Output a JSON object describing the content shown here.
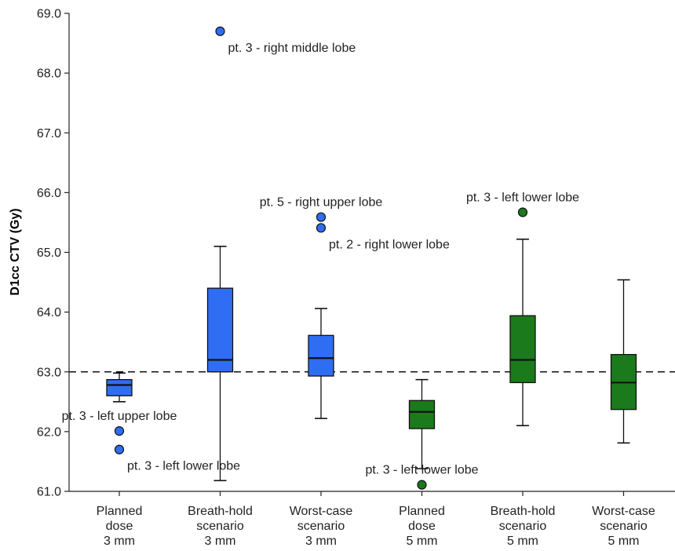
{
  "chart_data": {
    "type": "box",
    "title": "",
    "xlabel": "",
    "ylabel": "D1cc CTV (Gy)",
    "ylim": [
      61.0,
      69.0
    ],
    "yticks": [
      "61.0",
      "62.0",
      "63.0",
      "64.0",
      "65.0",
      "66.0",
      "67.0",
      "68.0",
      "69.0"
    ],
    "reference_line": {
      "y": 63.0,
      "style": "dashed"
    },
    "grid": false,
    "colors": {
      "3 mm": "#2f6ef2",
      "5 mm": "#1b7a1b"
    },
    "categories": [
      {
        "lines": [
          "Planned",
          "dose",
          "3 mm"
        ],
        "group": "3 mm",
        "min": 62.5,
        "q1": 62.6,
        "median": 62.78,
        "q3": 62.87,
        "max": 62.98
      },
      {
        "lines": [
          "Breath-hold",
          "scenario",
          "3 mm"
        ],
        "group": "3 mm",
        "min": 61.18,
        "q1": 63.0,
        "median": 63.2,
        "q3": 64.4,
        "max": 65.1
      },
      {
        "lines": [
          "Worst-case",
          "scenario",
          "3 mm"
        ],
        "group": "3 mm",
        "min": 62.22,
        "q1": 62.93,
        "median": 63.23,
        "q3": 63.61,
        "max": 64.06
      },
      {
        "lines": [
          "Planned",
          "dose",
          "5 mm"
        ],
        "group": "5 mm",
        "min": 61.38,
        "q1": 62.05,
        "median": 62.33,
        "q3": 62.52,
        "max": 62.87
      },
      {
        "lines": [
          "Breath-hold",
          "scenario",
          "5 mm"
        ],
        "group": "5 mm",
        "min": 62.1,
        "q1": 62.82,
        "median": 63.2,
        "q3": 63.94,
        "max": 65.22
      },
      {
        "lines": [
          "Worst-case",
          "scenario",
          "5 mm"
        ],
        "group": "5 mm",
        "min": 61.81,
        "q1": 62.37,
        "median": 62.82,
        "q3": 63.29,
        "max": 64.54
      }
    ],
    "outliers": [
      {
        "category": 0,
        "y": 62.01,
        "label": "pt. 3 - left upper lobe",
        "label_pos": "above"
      },
      {
        "category": 0,
        "y": 61.7,
        "label": "pt. 3 - left lower lobe",
        "label_pos": "below-right"
      },
      {
        "category": 1,
        "y": 68.7,
        "label": "pt. 3 - right middle lobe",
        "label_pos": "below-right"
      },
      {
        "category": 2,
        "y": 65.59,
        "label": "pt. 5 - right upper lobe",
        "label_pos": "above"
      },
      {
        "category": 2,
        "y": 65.41,
        "label": "pt. 2 - right lower lobe",
        "label_pos": "below-right"
      },
      {
        "category": 3,
        "y": 61.11,
        "label": "pt. 3 - left lower lobe",
        "label_pos": "above"
      },
      {
        "category": 4,
        "y": 65.67,
        "label": "pt. 3 - left lower lobe",
        "label_pos": "above"
      }
    ]
  }
}
